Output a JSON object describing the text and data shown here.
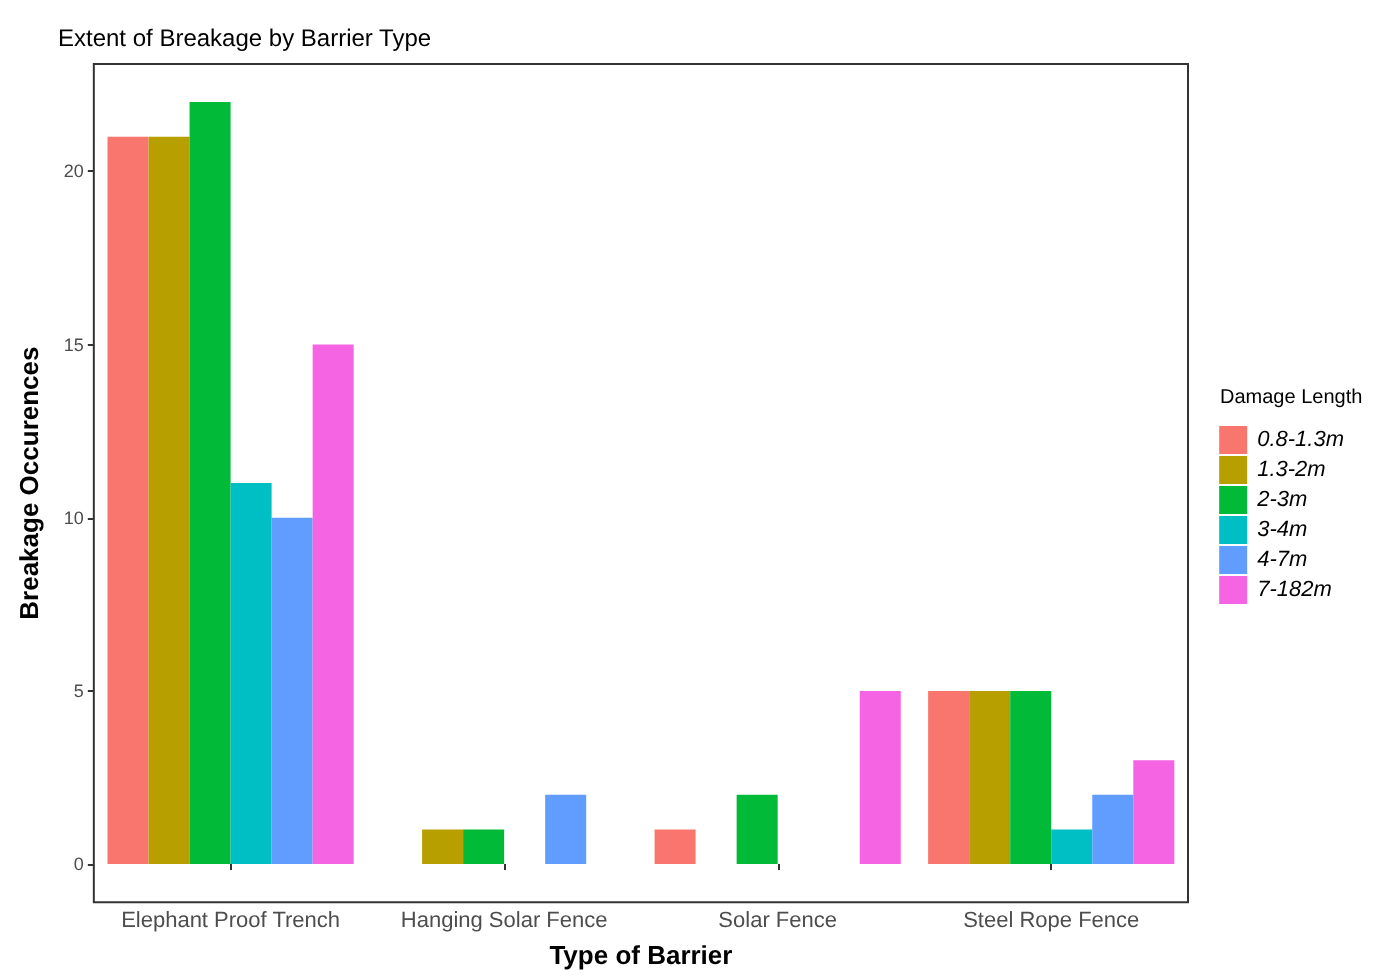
{
  "chart_data": {
    "type": "bar",
    "title": "Extent of Breakage by Barrier Type",
    "xlabel": "Type of Barrier",
    "ylabel": "Breakage Occurences",
    "legend_title": "Damage Length",
    "categories": [
      "Elephant Proof Trench",
      "Hanging Solar Fence",
      "Solar Fence",
      "Steel Rope Fence"
    ],
    "series": [
      {
        "name": "0.8-1.3m",
        "color": "#f8766d",
        "values": [
          21,
          null,
          1,
          5
        ]
      },
      {
        "name": "1.3-2m",
        "color": "#b79f00",
        "values": [
          21,
          1,
          null,
          5
        ]
      },
      {
        "name": "2-3m",
        "color": "#00ba38",
        "values": [
          22,
          1,
          2,
          5
        ]
      },
      {
        "name": "3-4m",
        "color": "#00bfc4",
        "values": [
          11,
          null,
          null,
          1
        ]
      },
      {
        "name": "4-7m",
        "color": "#619cff",
        "values": [
          10,
          2,
          null,
          2
        ]
      },
      {
        "name": "7-182m",
        "color": "#f564e3",
        "values": [
          15,
          null,
          5,
          3
        ]
      }
    ],
    "ylim": [
      -1.1,
      23.1
    ],
    "yticks": [
      0,
      5,
      10,
      15,
      20
    ],
    "grid": false,
    "legend": "right"
  }
}
